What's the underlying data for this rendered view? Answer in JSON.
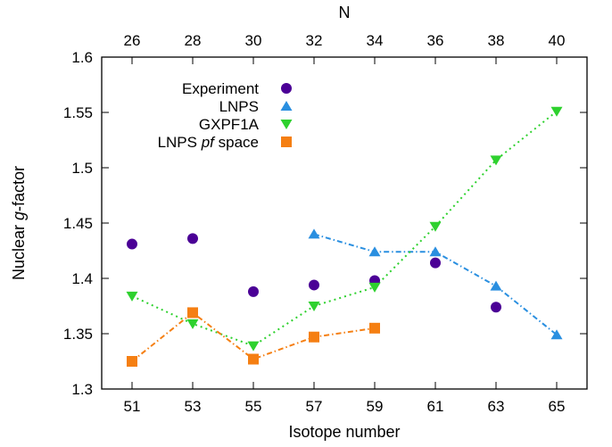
{
  "chart_data": {
    "type": "scatter",
    "title": "",
    "xlabel": "Isotope number",
    "x2label": "N",
    "ylabel_parts": [
      "Nuclear ",
      "g",
      "-factor"
    ],
    "xlim": [
      50,
      66
    ],
    "ylim": [
      1.3,
      1.6
    ],
    "xticks": [
      51,
      53,
      55,
      57,
      59,
      61,
      63,
      65
    ],
    "x2ticks": [
      {
        "at": 51,
        "label": "26"
      },
      {
        "at": 53,
        "label": "28"
      },
      {
        "at": 55,
        "label": "30"
      },
      {
        "at": 57,
        "label": "32"
      },
      {
        "at": 59,
        "label": "34"
      },
      {
        "at": 61,
        "label": "36"
      },
      {
        "at": 63,
        "label": "38"
      },
      {
        "at": 65,
        "label": "40"
      }
    ],
    "yticks": [
      "1.3",
      "1.35",
      "1.4",
      "1.45",
      "1.5",
      "1.55",
      "1.6"
    ],
    "grid": false,
    "legend_position": "top-left",
    "series": [
      {
        "name": "Experiment",
        "marker": "circle",
        "line": "none",
        "color": "#4b0096",
        "x": [
          51,
          53,
          55,
          57,
          59,
          61,
          63
        ],
        "y": [
          1.431,
          1.436,
          1.388,
          1.394,
          1.398,
          1.414,
          1.374
        ]
      },
      {
        "name": "LNPS",
        "marker": "triangle-up",
        "line": "dash-dot",
        "color": "#2a8fe0",
        "x": [
          57,
          59,
          61,
          63,
          65
        ],
        "y": [
          1.44,
          1.424,
          1.424,
          1.393,
          1.349
        ]
      },
      {
        "name": "GXPF1A",
        "marker": "triangle-down",
        "line": "dotted",
        "color": "#2ed12e",
        "x": [
          51,
          53,
          55,
          57,
          59,
          61,
          63,
          65
        ],
        "y": [
          1.384,
          1.359,
          1.339,
          1.375,
          1.392,
          1.447,
          1.507,
          1.551
        ]
      },
      {
        "name_parts": [
          "LNPS ",
          "pf",
          " space"
        ],
        "marker": "square",
        "line": "dash-dot",
        "color": "#f57f12",
        "x": [
          51,
          53,
          55,
          57,
          59
        ],
        "y": [
          1.325,
          1.369,
          1.327,
          1.347,
          1.355
        ]
      }
    ]
  }
}
